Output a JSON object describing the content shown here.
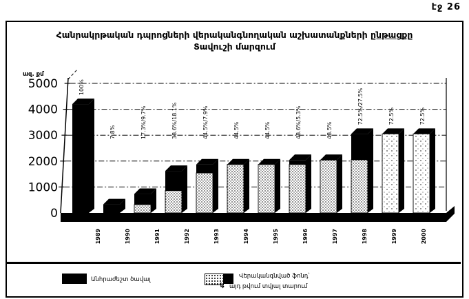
{
  "page": {
    "corner_label": "էջ 26"
  },
  "header": {
    "title_line1": "Հանրակրթական դպրոցների վերականգնողական աշխատանքների",
    "title_line1_underlined": "ընթացքը",
    "title_line2": "Տավուշի մարզում"
  },
  "axes": {
    "y_unit": "ազ. քմ"
  },
  "legend": {
    "item1_label": "Անհրաժեշտ ծավալ",
    "item2_label": "Վերականգնված  ֆոնդ՝",
    "item2_sub_arrow": "↳",
    "item2_sub": "այդ թվում տվյալ տարում"
  },
  "chart_data": {
    "type": "bar",
    "variant": "3d-stacked",
    "title": "Հանրակրթական դպրոցների վերականգնողական աշխատանքների ընթացքը Տավուշի մարզում",
    "categories": [
      "1989",
      "1990",
      "1991",
      "1992",
      "1993",
      "1994",
      "1995",
      "1996",
      "1997",
      "1998",
      "1999",
      "2000"
    ],
    "series": [
      {
        "name": "Վերականգնված ֆոնդ",
        "pattern": "dotted",
        "values": [
          0,
          0,
          320,
          860,
          1540,
          1870,
          1870,
          1870,
          2040,
          2050,
          3050,
          3050
        ]
      },
      {
        "name": "Անհրաժեշտ ծավալ",
        "pattern": "solid-black",
        "values": [
          4200,
          330,
          410,
          760,
          330,
          0,
          0,
          170,
          0,
          1000,
          0,
          0
        ]
      }
    ],
    "bar_total_labels": [
      "100%",
      "7.8%",
      "17.3%/9.7%",
      "38.6%/18.1%",
      "44.5%/7.9%",
      "44.5%",
      "44.5%",
      "48.6%/5.3%",
      "48.5%",
      "72.5%/27.5%",
      "72.5%",
      "72.5%"
    ],
    "bar_textures": [
      "solid",
      "solid",
      "stacked",
      "stacked",
      "stacked",
      "dotted",
      "dotted",
      "stacked",
      "dotted",
      "stacked",
      "dotted-sparse",
      "dotted-sparse"
    ],
    "ylabel": "ազ. քմ",
    "ylim": [
      0,
      5000
    ],
    "yticks": [
      0,
      1000,
      2000,
      3000,
      4000,
      5000
    ],
    "grid": "dashed-horizontal",
    "legend_position": "bottom"
  }
}
